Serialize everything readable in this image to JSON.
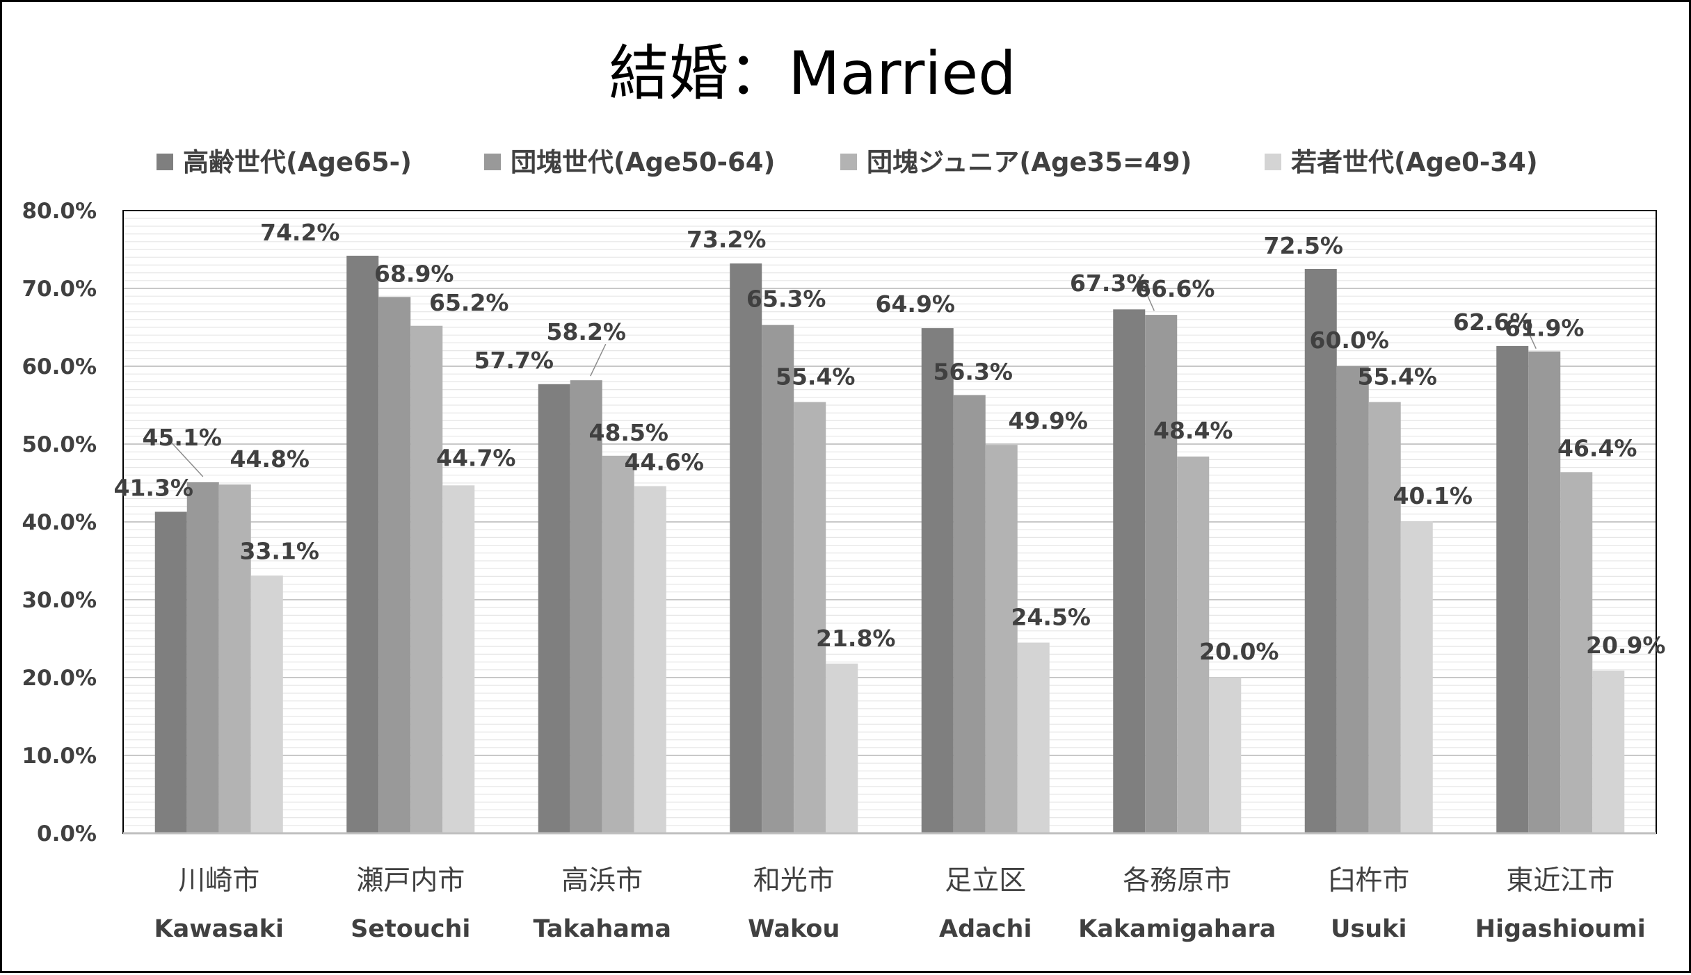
{
  "chart_data": {
    "type": "bar",
    "title": "結婚：Married",
    "categories": [
      "川崎市",
      "瀬戸内市",
      "高浜市",
      "和光市",
      "足立区",
      "各務原市",
      "臼杵市",
      "東近江市"
    ],
    "categories_en": [
      "Kawasaki",
      "Setouchi",
      "Takahama",
      "Wakou",
      "Adachi",
      "Kakamigahara",
      "Usuki",
      "Higashioumi"
    ],
    "series": [
      {
        "name": "高齢世代(Age65-)",
        "color": "#7f7f7f",
        "values": [
          41.3,
          74.2,
          57.7,
          73.2,
          64.9,
          67.3,
          72.5,
          62.6
        ],
        "labels": [
          "41.3%",
          "74.2%",
          "57.7%",
          "73.2%",
          "64.9%",
          "67.3%",
          "72.5%",
          "62.6%"
        ]
      },
      {
        "name": "団塊世代(Age50-64)",
        "color": "#999999",
        "values": [
          45.1,
          68.9,
          58.2,
          65.3,
          56.3,
          66.6,
          60.0,
          61.9
        ],
        "labels": [
          "45.1%",
          "68.9%",
          "58.2%",
          "65.3%",
          "56.3%",
          "66.6%",
          "60.0%",
          "61.9%"
        ]
      },
      {
        "name": "団塊ジュニア(Age35=49)",
        "color": "#b3b3b3",
        "values": [
          44.8,
          65.2,
          48.5,
          55.4,
          49.9,
          48.4,
          55.4,
          46.4
        ],
        "labels": [
          "44.8%",
          "65.2%",
          "48.5%",
          "55.4%",
          "49.9%",
          "48.4%",
          "55.4%",
          "46.4%"
        ]
      },
      {
        "name": "若者世代(Age0-34)",
        "color": "#d4d4d4",
        "values": [
          33.1,
          44.7,
          44.6,
          21.8,
          24.5,
          20.0,
          40.1,
          20.9
        ],
        "labels": [
          "33.1%",
          "44.7%",
          "44.6%",
          "21.8%",
          "24.5%",
          "20.0%",
          "40.1%",
          "20.9%"
        ]
      }
    ],
    "ylim": [
      0,
      80
    ],
    "yticks": [
      "0.0%",
      "10.0%",
      "20.0%",
      "30.0%",
      "40.0%",
      "50.0%",
      "60.0%",
      "70.0%",
      "80.0%"
    ],
    "grid": true,
    "legend_position": "top"
  }
}
